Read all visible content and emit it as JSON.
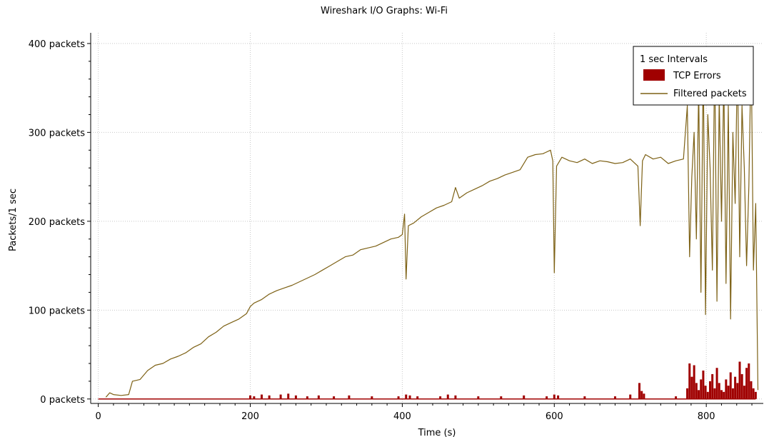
{
  "chart_data": {
    "type": "line",
    "title": "Wireshark I/O Graphs: Wi-Fi",
    "xlabel": "Time (s)",
    "ylabel": "Packets/1 sec",
    "xlim": [
      -10,
      875
    ],
    "ylim": [
      -5,
      412
    ],
    "x_ticks": [
      0,
      200,
      400,
      600,
      800
    ],
    "y_ticks": [
      {
        "value": 0,
        "label": "0 packets"
      },
      {
        "value": 100,
        "label": "100 packets"
      },
      {
        "value": 200,
        "label": "200 packets"
      },
      {
        "value": 300,
        "label": "300 packets"
      },
      {
        "value": 400,
        "label": "400 packets"
      }
    ],
    "grid": true,
    "legend": {
      "position": "top-right",
      "title": "1 sec Intervals",
      "entries": [
        "TCP Errors",
        "Filtered packets"
      ]
    },
    "colors": {
      "tcp_errors": "#a00000",
      "filtered_packets": "#7d6115",
      "grid": "#c8c8c8",
      "axis": "#000000"
    },
    "series": [
      {
        "name": "Filtered packets",
        "kind": "line",
        "x": [
          10,
          15,
          20,
          30,
          40,
          45,
          55,
          65,
          75,
          85,
          95,
          105,
          115,
          125,
          135,
          145,
          155,
          165,
          175,
          185,
          195,
          200,
          205,
          215,
          225,
          235,
          245,
          255,
          265,
          275,
          285,
          295,
          305,
          315,
          325,
          335,
          345,
          355,
          365,
          375,
          385,
          395,
          400,
          403,
          405,
          408,
          415,
          425,
          435,
          445,
          455,
          465,
          470,
          475,
          485,
          495,
          505,
          515,
          525,
          535,
          545,
          555,
          565,
          575,
          585,
          595,
          598,
          600,
          603,
          610,
          620,
          630,
          640,
          650,
          660,
          670,
          680,
          690,
          700,
          710,
          713,
          716,
          720,
          730,
          740,
          750,
          760,
          770,
          775,
          778,
          781,
          784,
          787,
          790,
          793,
          796,
          799,
          802,
          805,
          808,
          811,
          814,
          817,
          820,
          823,
          826,
          829,
          832,
          835,
          838,
          841,
          844,
          847,
          850,
          853,
          856,
          859,
          862,
          865,
          868
        ],
        "values": [
          2,
          7,
          5,
          4,
          5,
          20,
          22,
          32,
          38,
          40,
          45,
          48,
          52,
          58,
          62,
          70,
          75,
          82,
          86,
          90,
          96,
          104,
          108,
          112,
          118,
          122,
          125,
          128,
          132,
          136,
          140,
          145,
          150,
          155,
          160,
          162,
          168,
          170,
          172,
          176,
          180,
          182,
          185,
          208,
          135,
          195,
          198,
          205,
          210,
          215,
          218,
          222,
          238,
          226,
          232,
          236,
          240,
          245,
          248,
          252,
          255,
          258,
          272,
          275,
          276,
          280,
          268,
          142,
          262,
          272,
          268,
          266,
          270,
          265,
          268,
          267,
          265,
          266,
          270,
          262,
          195,
          268,
          275,
          270,
          272,
          265,
          268,
          270,
          330,
          160,
          250,
          300,
          180,
          350,
          120,
          380,
          95,
          320,
          260,
          145,
          390,
          110,
          340,
          200,
          360,
          130,
          330,
          90,
          300,
          220,
          385,
          160,
          330,
          260,
          150,
          240,
          395,
          145,
          220,
          10
        ]
      },
      {
        "name": "TCP Errors",
        "kind": "bar",
        "x": [
          200,
          205,
          215,
          225,
          240,
          250,
          260,
          275,
          290,
          310,
          330,
          360,
          395,
          405,
          410,
          420,
          450,
          460,
          470,
          500,
          530,
          560,
          590,
          600,
          605,
          640,
          680,
          700,
          712,
          715,
          718,
          760,
          775,
          778,
          781,
          784,
          787,
          790,
          793,
          796,
          799,
          802,
          805,
          808,
          811,
          814,
          817,
          820,
          823,
          826,
          829,
          832,
          835,
          838,
          841,
          844,
          847,
          850,
          853,
          856,
          859,
          862,
          865
        ],
        "values": [
          4,
          3,
          5,
          4,
          5,
          6,
          4,
          3,
          4,
          3,
          4,
          3,
          3,
          5,
          4,
          3,
          3,
          5,
          4,
          3,
          3,
          4,
          3,
          5,
          4,
          3,
          3,
          5,
          18,
          9,
          6,
          3,
          12,
          40,
          25,
          38,
          18,
          10,
          22,
          32,
          15,
          8,
          20,
          28,
          12,
          35,
          18,
          10,
          8,
          22,
          15,
          30,
          12,
          25,
          18,
          42,
          28,
          15,
          35,
          40,
          20,
          12,
          8
        ]
      }
    ]
  }
}
